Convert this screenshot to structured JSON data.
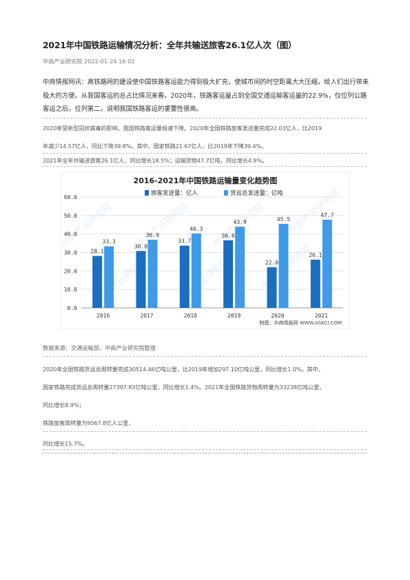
{
  "article": {
    "title": "2021年中国铁路运输情况分析：全年共输送旅客26.1亿人次（图）",
    "source_date": "中商产业研究院 2022-01-24 16:02",
    "lead": "中商情报网讯：高铁路网的建设使中国铁路客运能力得到极大扩充，使城市间的时空距离大大压缩，给人们出行带来极大的方便。从我国客运的总占比情况来看，2020年，铁路客运量占到全国交通运输客运量的22.9%，仅位列公路客运之后，位列第二，说明我国铁路客运的重要性很高。",
    "para1_line1": "2020年受新型冠状病毒的影响，我国铁路客运量极速下降。2020年全国铁路旅客发送量完成22.03亿人，比2019",
    "para1_line2": "年减少14.57亿人，同比下降39.8%。其中，国家铁路21.67亿人，比2019年下降39.4%。",
    "para2": "2021年全年共输送旅客26.1亿人，同比增长18.5%；运输货物47.7亿吨，同比增长4.9%。",
    "data_source": "数据来源：交通运输部、中商产业研究院整理",
    "para3_line1": "2020年全国铁路货运总周转量完成30514.46亿吨公里，比2019年增加297.10亿吨公里，同比增长1.0%。其中，",
    "para3_line2": "国家铁路完成货运总周转量27397.83亿吨公里，同比增长1.4%。2021年全国铁路货物周转量为33238亿吨公里，",
    "para3_line3": "同比增长8.9%；",
    "para4": "铁路旅客周转量为9567.8亿人公里，",
    "para5": "同比增长15.7%。"
  },
  "chart_data": {
    "type": "bar",
    "title": "2016-2021年中国铁路运输量变化趋势图",
    "categories": [
      "2016",
      "2017",
      "2018",
      "2019",
      "2020",
      "2021"
    ],
    "series": [
      {
        "name": "旅客发送量：亿人",
        "values": [
          28.1,
          30.8,
          33.7,
          36.6,
          22.0,
          26.1
        ],
        "color": "#1a6fc0"
      },
      {
        "name": "货运总发送量：亿吨",
        "values": [
          33.3,
          36.9,
          40.3,
          43.9,
          45.5,
          47.7
        ],
        "color": "#3f9ae8"
      }
    ],
    "ylim": [
      0,
      60
    ],
    "yticks": [
      "0.0",
      "10.0",
      "20.0",
      "30.0",
      "40.0",
      "50.0",
      "60.0"
    ],
    "value_labels": [
      [
        "28.1",
        "30.8",
        "33.7",
        "36.6",
        "22.0",
        "26.1"
      ],
      [
        "33.3",
        "36.9",
        "40.3",
        "43.9",
        "45.5",
        "47.7"
      ]
    ],
    "credit": "制图：中商情报网 WWW.ASKCI.COM",
    "watermark": "中商产业研究院",
    "grid": true,
    "legend_position": "top"
  }
}
